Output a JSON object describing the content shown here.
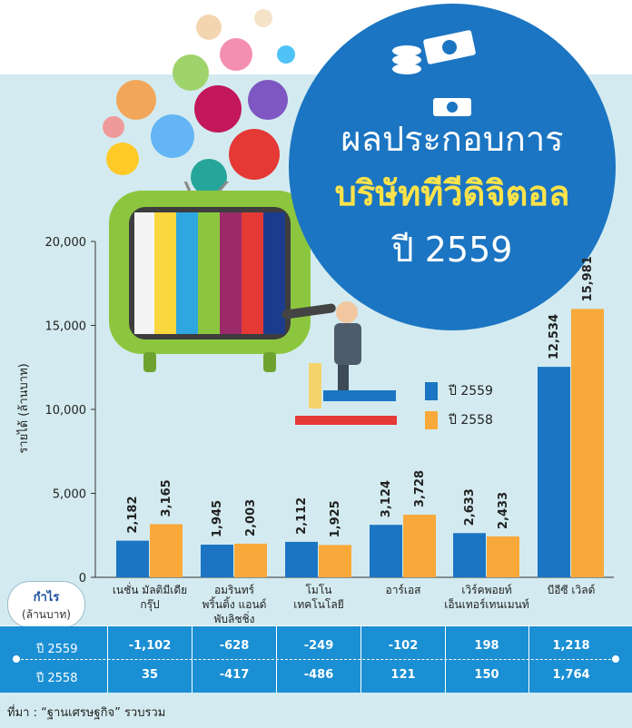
{
  "header": {
    "title_line1": "ผลประกอบการ",
    "title_line2": "บริษัททีวีดิจิตอล",
    "title_line3": "ปี 2559"
  },
  "chart_data": {
    "type": "bar",
    "ylabel": "รายได้ (ล้านบาท)",
    "ylim": [
      0,
      20000
    ],
    "yticks": [
      0,
      5000,
      10000,
      15000,
      20000
    ],
    "ytick_labels": [
      "0",
      "5,000",
      "10,000",
      "15,000",
      "20,000"
    ],
    "categories": [
      [
        "เนชั่น มัลติมีเดีย",
        "กรุ๊ป"
      ],
      [
        "อมรินทร์",
        "พริ้นติ้ง แอนด์",
        "พับลิชชิ่ง"
      ],
      [
        "โมโน",
        "เทคโนโลยี"
      ],
      [
        "อาร์เอส"
      ],
      [
        "เวิร์คพอยท์",
        "เอ็นเทอร์เทนเมนท์"
      ],
      [
        "บีอีซี เวิลด์"
      ]
    ],
    "series": [
      {
        "name": "ปี 2559",
        "color": "#1b75c2",
        "values": [
          2182,
          1945,
          2112,
          3124,
          2633,
          12534
        ],
        "labels": [
          "2,182",
          "1,945",
          "2,112",
          "3,124",
          "2,633",
          "12,534"
        ]
      },
      {
        "name": "ปี 2558",
        "color": "#f9a93a",
        "values": [
          3165,
          2003,
          1925,
          3728,
          2433,
          15981
        ],
        "labels": [
          "3,165",
          "2,003",
          "1,925",
          "3,728",
          "2,433",
          "15,981"
        ]
      }
    ],
    "legend_position": "right"
  },
  "legend": {
    "item1": "ปี 2559",
    "item2": "ปี 2558"
  },
  "profit": {
    "label": "กำไร",
    "unit": "(ล้านบาท)",
    "row1_label": "ปี 2559",
    "row2_label": "ปี 2558",
    "row1": [
      "-1,102",
      "-628",
      "-249",
      "-102",
      "198",
      "1,218"
    ],
    "row2": [
      "35",
      "-417",
      "-486",
      "121",
      "150",
      "1,764"
    ]
  },
  "footer": {
    "source": "ที่มา : “ฐานเศรษฐกิจ” รวบรวม"
  }
}
